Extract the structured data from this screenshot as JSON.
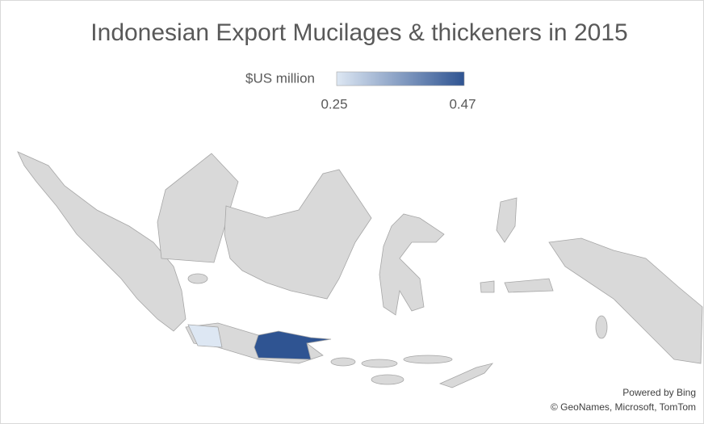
{
  "chart_data": {
    "type": "map",
    "title": "Indonesian Export Mucilages & thickeners in 2015",
    "legend_title": "$US million",
    "scale": {
      "min": 0.25,
      "max": 0.47,
      "min_color": "#dde7f3",
      "max_color": "#2f5492"
    },
    "values": [
      0.25,
      0.47
    ]
  },
  "attribution": [
    "Powered by Bing",
    "© GeoNames, Microsoft, TomTom"
  ]
}
